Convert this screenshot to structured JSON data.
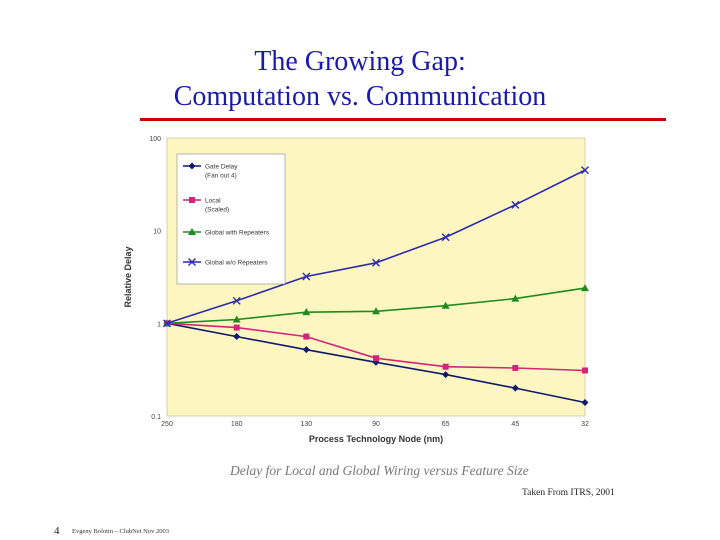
{
  "slide": {
    "title_line1": "The Growing Gap:",
    "title_line2": "Computation vs. Communication",
    "caption": "Delay for Local and Global Wiring versus Feature Size",
    "source": "Taken From ITRS, 2001",
    "number": "4",
    "footer": "Evgeny Bolotin – ClubNet Nov 2003"
  },
  "colors": {
    "title": "#1a1aa8",
    "rule": "#cc0000",
    "plot_bg": "#fdf6c0",
    "gate": "#0d1a6e",
    "local": "#d4237a",
    "global_rep": "#1f8a1f",
    "global_norep": "#2b2bb0"
  },
  "chart_data": {
    "type": "line",
    "y_scale": "log",
    "ylim": [
      0.1,
      100
    ],
    "y_ticks": [
      "100",
      "10",
      "1",
      "0.1"
    ],
    "y_tick_values": [
      100,
      10,
      1,
      0.1
    ],
    "categories": [
      "250",
      "180",
      "130",
      "90",
      "65",
      "45",
      "32"
    ],
    "x": [
      250,
      180,
      130,
      90,
      65,
      45,
      32
    ],
    "xlabel": "Process Technology Node (nm)",
    "ylabel": "Relative Delay",
    "grid": false,
    "legend_position": "top-left",
    "series": [
      {
        "name": "Gate Delay (Fan out 4)",
        "legend_lines": [
          "Gate Delay",
          "(Fan out 4)"
        ],
        "marker": "diamond",
        "color_key": "gate",
        "values": [
          1,
          0.72,
          0.52,
          0.38,
          0.28,
          0.2,
          0.14
        ]
      },
      {
        "name": "Local (Scaled)",
        "legend_lines": [
          "Local",
          "(Scaled)"
        ],
        "marker": "square",
        "color_key": "local",
        "values": [
          1,
          0.9,
          0.72,
          0.42,
          0.34,
          0.33,
          0.31
        ]
      },
      {
        "name": "Global with Repeaters",
        "legend_lines": [
          "Global with Repeaters"
        ],
        "marker": "triangle",
        "color_key": "global_rep",
        "values": [
          1,
          1.1,
          1.32,
          1.35,
          1.55,
          1.85,
          2.4
        ]
      },
      {
        "name": "Global w/o Repeaters",
        "legend_lines": [
          "Global w/o Repeaters"
        ],
        "marker": "x",
        "color_key": "global_norep",
        "values": [
          1,
          1.75,
          3.2,
          4.5,
          8.5,
          19,
          45
        ]
      }
    ]
  }
}
